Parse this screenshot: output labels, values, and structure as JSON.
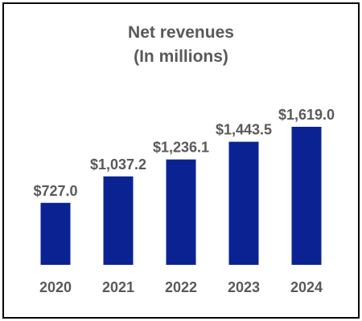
{
  "chart_data": {
    "type": "bar",
    "title": "Net revenues",
    "subtitle": "(In millions)",
    "categories": [
      "2020",
      "2021",
      "2022",
      "2023",
      "2024"
    ],
    "values": [
      727.0,
      1037.2,
      1236.1,
      1443.5,
      1619.0
    ],
    "data_labels": [
      "$727.0",
      "$1,037.2",
      "$1,236.1",
      "$1,443.5",
      "$1,619.0"
    ],
    "xlabel": "",
    "ylabel": "",
    "ylim": [
      0,
      1619.0
    ],
    "grid": false,
    "legend": "none",
    "bar_color": "#0b2392"
  }
}
